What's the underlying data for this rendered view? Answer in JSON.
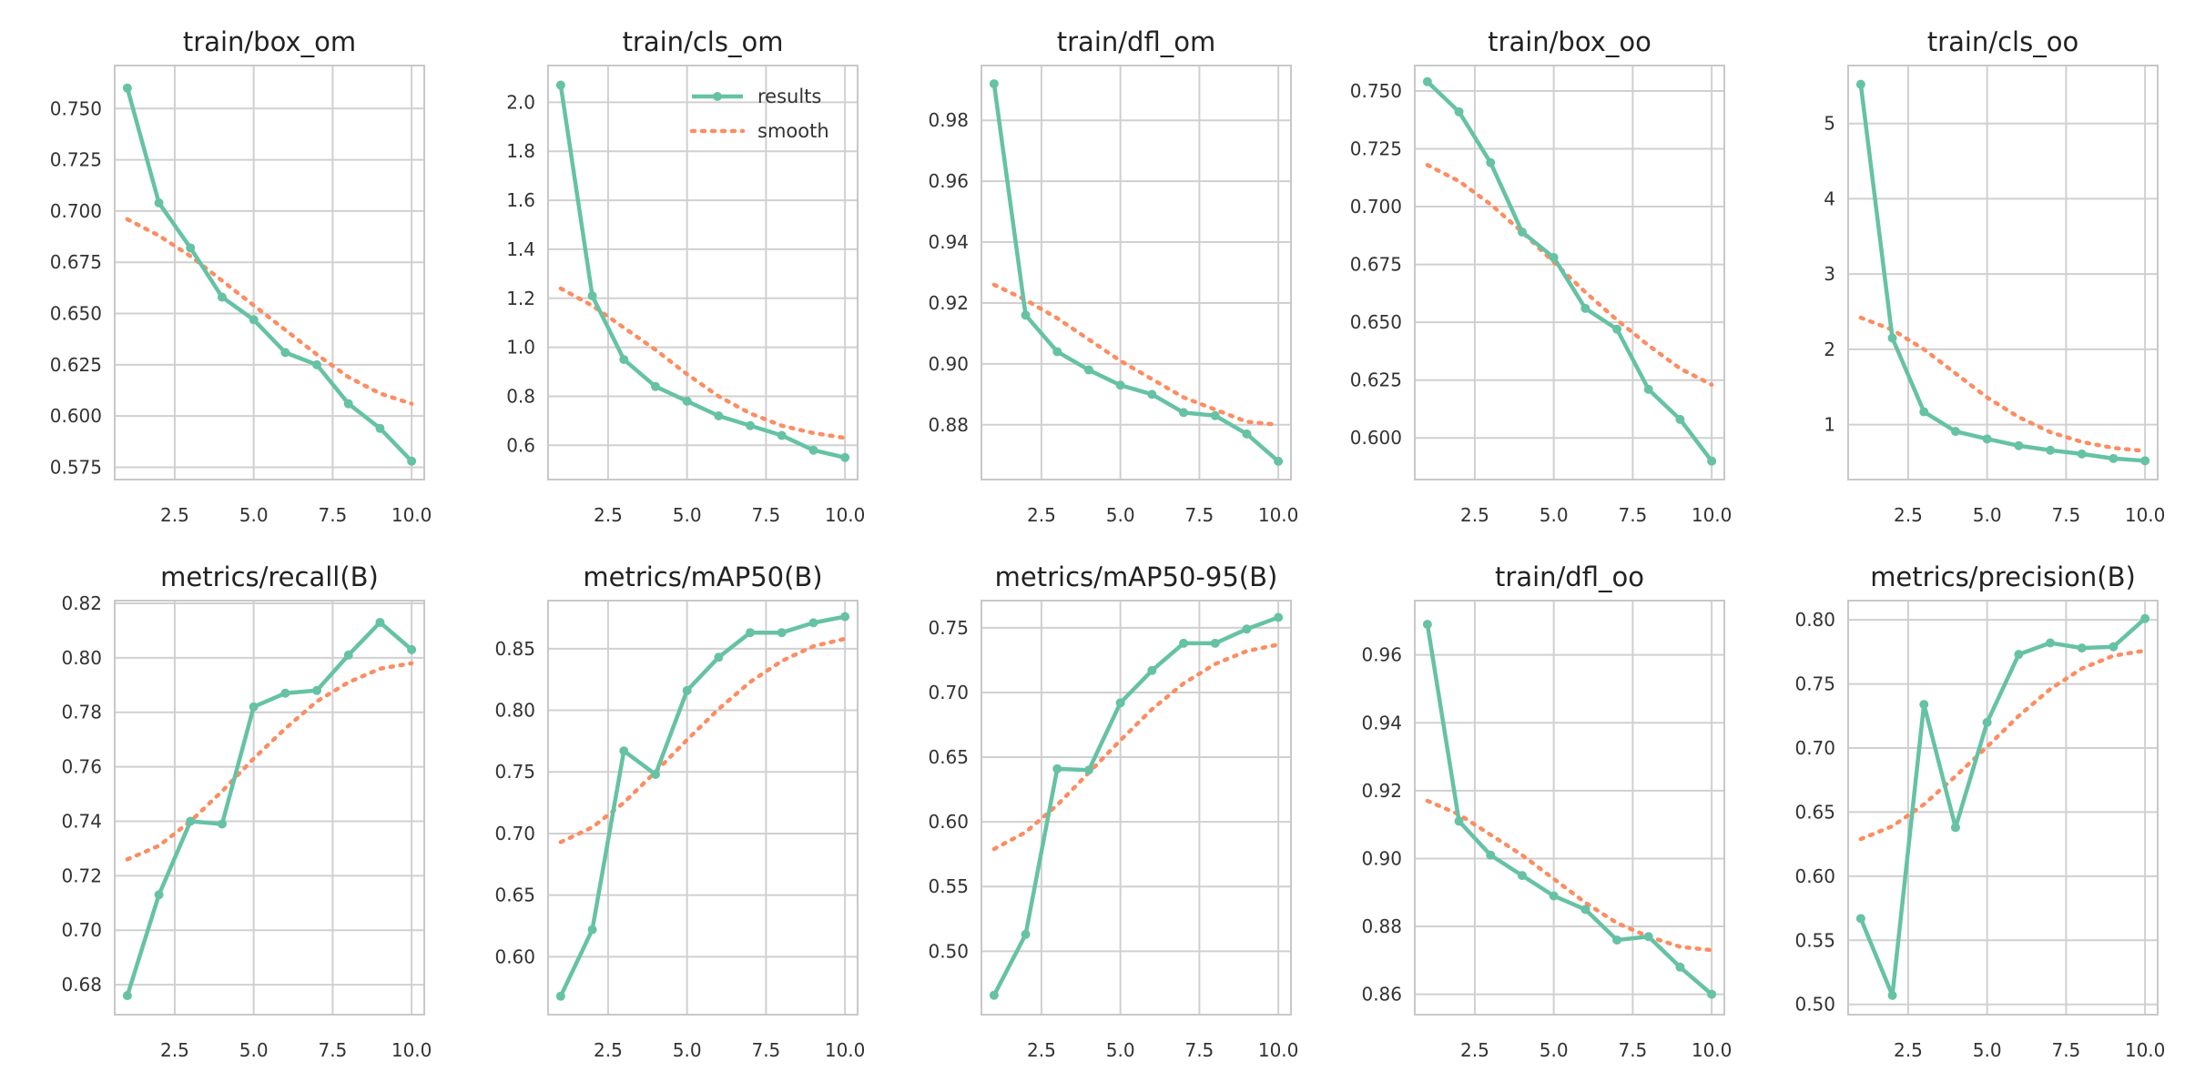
{
  "colors": {
    "results": "#66c2a5",
    "smooth": "#fc8d62",
    "grid": "#d0d0d0",
    "frame": "#c8c8c8"
  },
  "legend": {
    "results_label": "results",
    "smooth_label": "smooth",
    "placement": "upper-right of train/cls_om panel"
  },
  "chart_data": [
    {
      "type": "line",
      "title": "train/box_om",
      "x": [
        1,
        2,
        3,
        4,
        5,
        6,
        7,
        8,
        9,
        10
      ],
      "xlim": [
        0.6,
        10.4
      ],
      "xticks": [
        2.5,
        5.0,
        7.5,
        10.0
      ],
      "xtick_labels": [
        "2.5",
        "5.0",
        "7.5",
        "10.0"
      ],
      "ylim": [
        0.569,
        0.771
      ],
      "yticks": [
        0.575,
        0.6,
        0.625,
        0.65,
        0.675,
        0.7,
        0.725,
        0.75
      ],
      "ytick_labels": [
        "0.575",
        "0.600",
        "0.625",
        "0.650",
        "0.675",
        "0.700",
        "0.725",
        "0.750"
      ],
      "grid": true,
      "series": [
        {
          "name": "results",
          "values": [
            0.76,
            0.704,
            0.682,
            0.658,
            0.647,
            0.631,
            0.625,
            0.606,
            0.594,
            0.578
          ]
        },
        {
          "name": "smooth",
          "values": [
            0.696,
            0.688,
            0.678,
            0.666,
            0.654,
            0.642,
            0.63,
            0.619,
            0.611,
            0.606
          ]
        }
      ]
    },
    {
      "type": "line",
      "title": "train/cls_om",
      "x": [
        1,
        2,
        3,
        4,
        5,
        6,
        7,
        8,
        9,
        10
      ],
      "xlim": [
        0.6,
        10.4
      ],
      "xticks": [
        2.5,
        5.0,
        7.5,
        10.0
      ],
      "xtick_labels": [
        "2.5",
        "5.0",
        "7.5",
        "10.0"
      ],
      "ylim": [
        0.46,
        2.15
      ],
      "yticks": [
        0.6,
        0.8,
        1.0,
        1.2,
        1.4,
        1.6,
        1.8,
        2.0
      ],
      "ytick_labels": [
        "0.6",
        "0.8",
        "1.0",
        "1.2",
        "1.4",
        "1.6",
        "1.8",
        "2.0"
      ],
      "grid": true,
      "legend": true,
      "series": [
        {
          "name": "results",
          "values": [
            2.07,
            1.21,
            0.95,
            0.84,
            0.78,
            0.72,
            0.68,
            0.64,
            0.58,
            0.55
          ]
        },
        {
          "name": "smooth",
          "values": [
            1.24,
            1.17,
            1.08,
            0.99,
            0.89,
            0.8,
            0.73,
            0.68,
            0.65,
            0.63
          ]
        }
      ]
    },
    {
      "type": "line",
      "title": "train/dfl_om",
      "x": [
        1,
        2,
        3,
        4,
        5,
        6,
        7,
        8,
        9,
        10
      ],
      "xlim": [
        0.6,
        10.4
      ],
      "xticks": [
        2.5,
        5.0,
        7.5,
        10.0
      ],
      "xtick_labels": [
        "2.5",
        "5.0",
        "7.5",
        "10.0"
      ],
      "ylim": [
        0.862,
        0.998
      ],
      "yticks": [
        0.88,
        0.9,
        0.92,
        0.94,
        0.96,
        0.98
      ],
      "ytick_labels": [
        "0.88",
        "0.90",
        "0.92",
        "0.94",
        "0.96",
        "0.98"
      ],
      "grid": true,
      "series": [
        {
          "name": "results",
          "values": [
            0.992,
            0.916,
            0.904,
            0.898,
            0.893,
            0.89,
            0.884,
            0.883,
            0.877,
            0.868
          ]
        },
        {
          "name": "smooth",
          "values": [
            0.926,
            0.921,
            0.915,
            0.908,
            0.901,
            0.895,
            0.889,
            0.885,
            0.881,
            0.88
          ]
        }
      ]
    },
    {
      "type": "line",
      "title": "train/box_oo",
      "x": [
        1,
        2,
        3,
        4,
        5,
        6,
        7,
        8,
        9,
        10
      ],
      "xlim": [
        0.6,
        10.4
      ],
      "xticks": [
        2.5,
        5.0,
        7.5,
        10.0
      ],
      "xtick_labels": [
        "2.5",
        "5.0",
        "7.5",
        "10.0"
      ],
      "ylim": [
        0.582,
        0.761
      ],
      "yticks": [
        0.6,
        0.625,
        0.65,
        0.675,
        0.7,
        0.725,
        0.75
      ],
      "ytick_labels": [
        "0.600",
        "0.625",
        "0.650",
        "0.675",
        "0.700",
        "0.725",
        "0.750"
      ],
      "grid": true,
      "series": [
        {
          "name": "results",
          "values": [
            0.754,
            0.741,
            0.719,
            0.689,
            0.678,
            0.656,
            0.647,
            0.621,
            0.608,
            0.59
          ]
        },
        {
          "name": "smooth",
          "values": [
            0.718,
            0.711,
            0.701,
            0.689,
            0.676,
            0.663,
            0.651,
            0.64,
            0.63,
            0.623
          ]
        }
      ]
    },
    {
      "type": "line",
      "title": "train/cls_oo",
      "x": [
        1,
        2,
        3,
        4,
        5,
        6,
        7,
        8,
        9,
        10
      ],
      "xlim": [
        0.6,
        10.4
      ],
      "xticks": [
        2.5,
        5.0,
        7.5,
        10.0
      ],
      "xtick_labels": [
        "2.5",
        "5.0",
        "7.5",
        "10.0"
      ],
      "ylim": [
        0.27,
        5.77
      ],
      "yticks": [
        1,
        2,
        3,
        4,
        5
      ],
      "ytick_labels": [
        "1",
        "2",
        "3",
        "4",
        "5"
      ],
      "grid": true,
      "series": [
        {
          "name": "results",
          "values": [
            5.52,
            2.15,
            1.17,
            0.91,
            0.81,
            0.72,
            0.66,
            0.61,
            0.55,
            0.52
          ]
        },
        {
          "name": "smooth",
          "values": [
            2.42,
            2.26,
            2.0,
            1.68,
            1.36,
            1.1,
            0.9,
            0.77,
            0.69,
            0.65
          ]
        }
      ]
    },
    {
      "type": "line",
      "title": "metrics/recall(B)",
      "x": [
        1,
        2,
        3,
        4,
        5,
        6,
        7,
        8,
        9,
        10
      ],
      "xlim": [
        0.6,
        10.4
      ],
      "xticks": [
        2.5,
        5.0,
        7.5,
        10.0
      ],
      "xtick_labels": [
        "2.5",
        "5.0",
        "7.5",
        "10.0"
      ],
      "ylim": [
        0.669,
        0.821
      ],
      "yticks": [
        0.68,
        0.7,
        0.72,
        0.74,
        0.76,
        0.78,
        0.8,
        0.82
      ],
      "ytick_labels": [
        "0.68",
        "0.70",
        "0.72",
        "0.74",
        "0.76",
        "0.78",
        "0.80",
        "0.82"
      ],
      "grid": true,
      "series": [
        {
          "name": "results",
          "values": [
            0.676,
            0.713,
            0.74,
            0.739,
            0.782,
            0.787,
            0.788,
            0.801,
            0.813,
            0.803
          ]
        },
        {
          "name": "smooth",
          "values": [
            0.726,
            0.731,
            0.74,
            0.751,
            0.763,
            0.774,
            0.784,
            0.791,
            0.796,
            0.798
          ]
        }
      ]
    },
    {
      "type": "line",
      "title": "metrics/mAP50(B)",
      "x": [
        1,
        2,
        3,
        4,
        5,
        6,
        7,
        8,
        9,
        10
      ],
      "xlim": [
        0.6,
        10.4
      ],
      "xticks": [
        2.5,
        5.0,
        7.5,
        10.0
      ],
      "xtick_labels": [
        "2.5",
        "5.0",
        "7.5",
        "10.0"
      ],
      "ylim": [
        0.553,
        0.889
      ],
      "yticks": [
        0.6,
        0.65,
        0.7,
        0.75,
        0.8,
        0.85
      ],
      "ytick_labels": [
        "0.60",
        "0.65",
        "0.70",
        "0.75",
        "0.80",
        "0.85"
      ],
      "grid": true,
      "series": [
        {
          "name": "results",
          "values": [
            0.568,
            0.622,
            0.767,
            0.748,
            0.816,
            0.843,
            0.863,
            0.863,
            0.871,
            0.876
          ]
        },
        {
          "name": "smooth",
          "values": [
            0.693,
            0.705,
            0.725,
            0.75,
            0.776,
            0.801,
            0.823,
            0.84,
            0.852,
            0.858
          ]
        }
      ]
    },
    {
      "type": "line",
      "title": "metrics/mAP50-95(B)",
      "x": [
        1,
        2,
        3,
        4,
        5,
        6,
        7,
        8,
        9,
        10
      ],
      "xlim": [
        0.6,
        10.4
      ],
      "xticks": [
        2.5,
        5.0,
        7.5,
        10.0
      ],
      "xtick_labels": [
        "2.5",
        "5.0",
        "7.5",
        "10.0"
      ],
      "ylim": [
        0.451,
        0.771
      ],
      "yticks": [
        0.5,
        0.55,
        0.6,
        0.65,
        0.7,
        0.75
      ],
      "ytick_labels": [
        "0.50",
        "0.55",
        "0.60",
        "0.65",
        "0.70",
        "0.75"
      ],
      "grid": true,
      "series": [
        {
          "name": "results",
          "values": [
            0.466,
            0.513,
            0.641,
            0.64,
            0.692,
            0.717,
            0.738,
            0.738,
            0.749,
            0.758
          ]
        },
        {
          "name": "smooth",
          "values": [
            0.579,
            0.592,
            0.613,
            0.638,
            0.663,
            0.687,
            0.707,
            0.722,
            0.732,
            0.737
          ]
        }
      ]
    },
    {
      "type": "line",
      "title": "train/dfl_oo",
      "x": [
        1,
        2,
        3,
        4,
        5,
        6,
        7,
        8,
        9,
        10
      ],
      "xlim": [
        0.6,
        10.4
      ],
      "xticks": [
        2.5,
        5.0,
        7.5,
        10.0
      ],
      "xtick_labels": [
        "2.5",
        "5.0",
        "7.5",
        "10.0"
      ],
      "ylim": [
        0.854,
        0.976
      ],
      "yticks": [
        0.86,
        0.88,
        0.9,
        0.92,
        0.94,
        0.96
      ],
      "ytick_labels": [
        "0.86",
        "0.88",
        "0.90",
        "0.92",
        "0.94",
        "0.96"
      ],
      "grid": true,
      "series": [
        {
          "name": "results",
          "values": [
            0.969,
            0.911,
            0.901,
            0.895,
            0.889,
            0.885,
            0.876,
            0.877,
            0.868,
            0.86
          ]
        },
        {
          "name": "smooth",
          "values": [
            0.917,
            0.913,
            0.907,
            0.901,
            0.894,
            0.887,
            0.881,
            0.877,
            0.874,
            0.873
          ]
        }
      ]
    },
    {
      "type": "line",
      "title": "metrics/precision(B)",
      "x": [
        1,
        2,
        3,
        4,
        5,
        6,
        7,
        8,
        9,
        10
      ],
      "xlim": [
        0.6,
        10.4
      ],
      "xticks": [
        2.5,
        5.0,
        7.5,
        10.0
      ],
      "xtick_labels": [
        "2.5",
        "5.0",
        "7.5",
        "10.0"
      ],
      "ylim": [
        0.492,
        0.815
      ],
      "yticks": [
        0.5,
        0.55,
        0.6,
        0.65,
        0.7,
        0.75,
        0.8
      ],
      "ytick_labels": [
        "0.50",
        "0.55",
        "0.60",
        "0.65",
        "0.70",
        "0.75",
        "0.80"
      ],
      "grid": true,
      "series": [
        {
          "name": "results",
          "values": [
            0.567,
            0.507,
            0.734,
            0.638,
            0.72,
            0.773,
            0.782,
            0.778,
            0.779,
            0.801
          ]
        },
        {
          "name": "smooth",
          "values": [
            0.629,
            0.639,
            0.656,
            0.678,
            0.701,
            0.725,
            0.746,
            0.762,
            0.772,
            0.776
          ]
        }
      ]
    }
  ]
}
